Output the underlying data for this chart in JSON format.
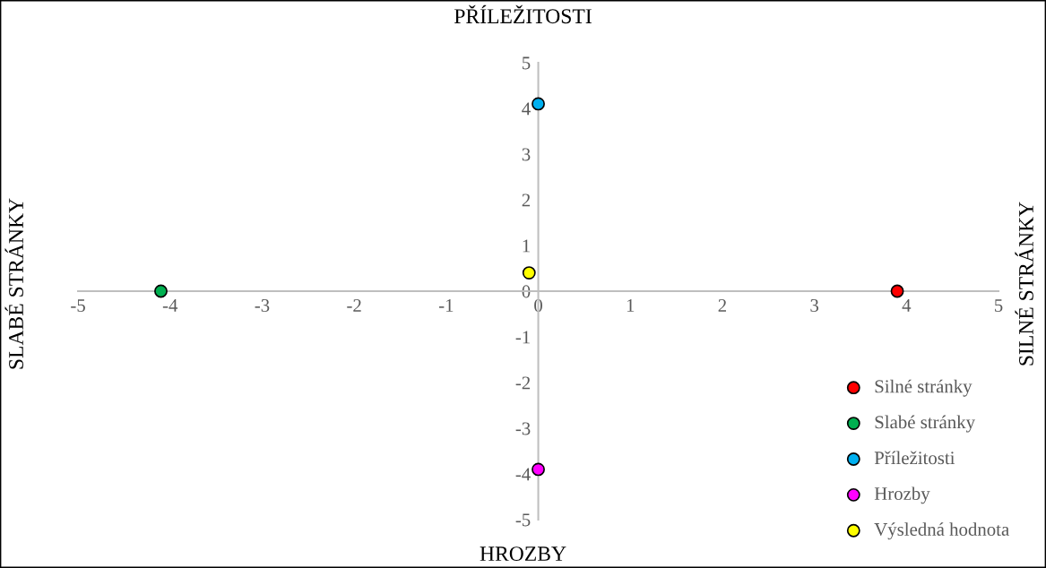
{
  "chart_data": {
    "type": "scatter",
    "title": "PŘÍLEŽITOSTI",
    "xlabel": "HROZBY",
    "ylabel": "SLABÉ STRÁNKY",
    "y2label": "SILNÉ STRÁNKY",
    "series": [
      {
        "name": "Silné stránky",
        "color": "#ff0000",
        "x": [
          3.9
        ],
        "values": [
          0
        ]
      },
      {
        "name": "Slabé stránky",
        "color": "#00b050",
        "x": [
          -4.1
        ],
        "values": [
          0
        ]
      },
      {
        "name": "Příležitosti",
        "color": "#00b0f0",
        "x": [
          0
        ],
        "values": [
          4.1
        ]
      },
      {
        "name": "Hrozby",
        "color": "#ff00ff",
        "x": [
          0
        ],
        "values": [
          -3.9
        ]
      },
      {
        "name": "Výsledná hodnota",
        "color": "#ffff00",
        "x": [
          -0.1
        ],
        "values": [
          0.4
        ]
      }
    ],
    "xlim": [
      -5,
      5
    ],
    "ylim": [
      -5,
      5
    ],
    "xticks": [
      -5,
      -4,
      -3,
      -2,
      -1,
      0,
      1,
      2,
      3,
      4,
      5
    ],
    "yticks": [
      -5,
      -4,
      -3,
      -2,
      -1,
      0,
      1,
      2,
      3,
      4,
      5
    ],
    "grid": false,
    "legend": "bottom right",
    "marker": "circle"
  }
}
